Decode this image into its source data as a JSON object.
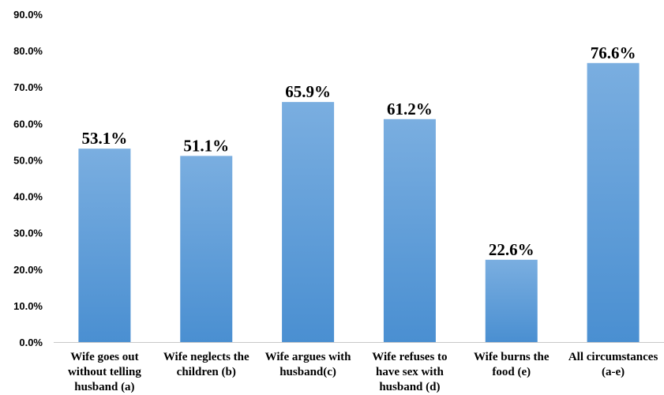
{
  "chart_data": {
    "type": "bar",
    "categories": [
      [
        "Wife goes out",
        "without telling",
        "husband (a)"
      ],
      [
        "Wife neglects the",
        "children (b)"
      ],
      [
        "Wife argues with",
        "husband(c)"
      ],
      [
        "Wife refuses to",
        "have sex with",
        "husband (d)"
      ],
      [
        "Wife burns the",
        "food (e)"
      ],
      [
        "All circumstances",
        "(a-e)"
      ]
    ],
    "values": [
      53.1,
      51.1,
      65.9,
      61.2,
      22.6,
      76.6
    ],
    "data_labels": [
      "53.1%",
      "51.1%",
      "65.9%",
      "61.2%",
      "22.6%",
      "76.6%"
    ],
    "yticks": [
      "0.0%",
      "10.0%",
      "20.0%",
      "30.0%",
      "40.0%",
      "50.0%",
      "60.0%",
      "70.0%",
      "80.0%",
      "90.0%"
    ],
    "ylim": [
      0,
      90
    ],
    "ytick_step": 10,
    "grid": false,
    "legend": "none",
    "title": "",
    "xlabel": "",
    "ylabel": "",
    "colors": {
      "bar_top": "#7aaee0",
      "bar_bottom": "#4a8fd1",
      "axis": "#c9c9c9"
    }
  }
}
